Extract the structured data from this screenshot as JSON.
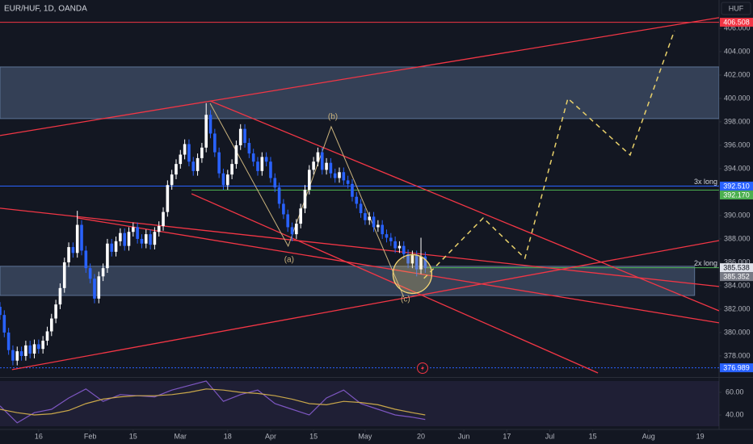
{
  "chart_data": {
    "type": "candlestick",
    "title": "EUR/HUF, 1D, OANDA",
    "currency": "HUF",
    "up_color": "#ffffff",
    "down_color": "#2962ff",
    "xlim": [
      0,
      167.4
    ],
    "ylim": [
      376.34,
      408.41
    ],
    "xticks": [
      {
        "value": 9,
        "label": "16"
      },
      {
        "value": 21,
        "label": "Feb"
      },
      {
        "value": 31,
        "label": "15"
      },
      {
        "value": 42,
        "label": "Mar"
      },
      {
        "value": 53,
        "label": "18"
      },
      {
        "value": 63,
        "label": "Apr"
      },
      {
        "value": 73,
        "label": "15"
      },
      {
        "value": 85,
        "label": "May"
      },
      {
        "value": 98,
        "label": "20"
      },
      {
        "value": 108,
        "label": "Jun"
      },
      {
        "value": 118,
        "label": "17"
      },
      {
        "value": 128,
        "label": "Jul"
      },
      {
        "value": 138,
        "label": "15"
      },
      {
        "value": 151,
        "label": "Aug"
      },
      {
        "value": 163,
        "label": "19"
      }
    ],
    "yticks": [
      {
        "value": 378,
        "label": "378.000"
      },
      {
        "value": 380,
        "label": "380.000"
      },
      {
        "value": 382,
        "label": "382.000"
      },
      {
        "value": 384,
        "label": "384.000"
      },
      {
        "value": 386,
        "label": "386.000"
      },
      {
        "value": 388,
        "label": "388.000"
      },
      {
        "value": 390,
        "label": "390.000"
      },
      {
        "value": 392,
        "label": "392.000"
      },
      {
        "value": 394,
        "label": "394.000"
      },
      {
        "value": 396,
        "label": "396.000"
      },
      {
        "value": 398,
        "label": "398.000"
      },
      {
        "value": 400,
        "label": "400.000"
      },
      {
        "value": 402,
        "label": "402.000"
      },
      {
        "value": 404,
        "label": "404.000"
      },
      {
        "value": 406,
        "label": "406.000"
      }
    ],
    "x": [
      0,
      1,
      2,
      3,
      4,
      5,
      6,
      7,
      8,
      9,
      10,
      11,
      12,
      13,
      14,
      15,
      16,
      17,
      18,
      19,
      20,
      21,
      22,
      23,
      24,
      25,
      26,
      27,
      28,
      29,
      30,
      31,
      32,
      33,
      34,
      35,
      36,
      37,
      38,
      39,
      40,
      41,
      42,
      43,
      44,
      45,
      46,
      47,
      48,
      49,
      50,
      51,
      52,
      53,
      54,
      55,
      56,
      57,
      58,
      59,
      60,
      61,
      62,
      63,
      64,
      65,
      66,
      67,
      68,
      69,
      70,
      71,
      72,
      73,
      74,
      75,
      76,
      77,
      78,
      79,
      80,
      81,
      82,
      83,
      84,
      85,
      86,
      87,
      88,
      89,
      90,
      91,
      92,
      93,
      94,
      95,
      96,
      97,
      98,
      99
    ],
    "ohlc": [
      [
        382.2,
        382.6,
        381.1,
        381.5
      ],
      [
        381.5,
        381.9,
        379.6,
        380.0
      ],
      [
        380.0,
        380.4,
        378.1,
        378.5
      ],
      [
        378.5,
        378.9,
        377.2,
        377.6
      ],
      [
        377.6,
        378.8,
        377.2,
        378.4
      ],
      [
        378.4,
        378.8,
        377.6,
        378.0
      ],
      [
        378.0,
        379.3,
        377.6,
        378.9
      ],
      [
        378.9,
        379.3,
        377.8,
        378.2
      ],
      [
        378.2,
        379.4,
        377.8,
        379.0
      ],
      [
        379.0,
        379.4,
        378.2,
        378.6
      ],
      [
        378.6,
        379.7,
        378.2,
        379.3
      ],
      [
        379.3,
        380.5,
        378.9,
        380.1
      ],
      [
        380.1,
        381.6,
        379.7,
        381.2
      ],
      [
        381.2,
        382.8,
        380.8,
        382.4
      ],
      [
        382.4,
        384.2,
        382.0,
        383.8
      ],
      [
        383.8,
        386.4,
        383.4,
        386.0
      ],
      [
        386.0,
        387.7,
        385.6,
        387.3
      ],
      [
        387.3,
        387.7,
        386.4,
        386.8
      ],
      [
        386.8,
        390.4,
        386.4,
        389.2
      ],
      [
        389.2,
        389.6,
        386.6,
        387.0
      ],
      [
        387.0,
        387.4,
        385.1,
        385.5
      ],
      [
        385.5,
        385.9,
        384.2,
        384.6
      ],
      [
        384.6,
        385.0,
        382.5,
        382.9
      ],
      [
        382.9,
        385.2,
        382.5,
        384.8
      ],
      [
        384.8,
        385.9,
        384.4,
        385.5
      ],
      [
        385.5,
        388.0,
        385.1,
        387.6
      ],
      [
        387.6,
        388.0,
        386.5,
        386.9
      ],
      [
        386.9,
        388.2,
        386.5,
        387.8
      ],
      [
        387.8,
        388.9,
        387.4,
        388.5
      ],
      [
        388.5,
        388.9,
        387.0,
        387.4
      ],
      [
        387.4,
        389.0,
        387.0,
        388.6
      ],
      [
        388.6,
        389.4,
        388.2,
        389.0
      ],
      [
        389.0,
        389.4,
        387.6,
        388.0
      ],
      [
        388.0,
        388.4,
        387.2,
        387.6
      ],
      [
        387.6,
        388.8,
        387.2,
        388.4
      ],
      [
        388.4,
        388.8,
        387.1,
        387.5
      ],
      [
        387.5,
        389.0,
        387.1,
        388.6
      ],
      [
        388.6,
        389.5,
        388.2,
        389.1
      ],
      [
        389.1,
        390.7,
        388.7,
        390.3
      ],
      [
        390.3,
        393.0,
        389.9,
        392.6
      ],
      [
        392.6,
        393.9,
        392.2,
        393.5
      ],
      [
        393.5,
        394.8,
        393.1,
        394.4
      ],
      [
        394.4,
        395.6,
        394.0,
        395.2
      ],
      [
        395.2,
        396.5,
        394.8,
        396.1
      ],
      [
        396.1,
        396.5,
        394.2,
        394.6
      ],
      [
        394.6,
        395.0,
        393.4,
        393.8
      ],
      [
        393.8,
        395.3,
        393.4,
        394.9
      ],
      [
        394.9,
        396.2,
        394.5,
        395.8
      ],
      [
        395.8,
        399.6,
        395.4,
        398.6
      ],
      [
        398.6,
        399.0,
        396.6,
        397.0
      ],
      [
        397.0,
        397.4,
        395.0,
        395.4
      ],
      [
        395.4,
        395.8,
        393.2,
        393.6
      ],
      [
        393.6,
        394.0,
        392.2,
        392.6
      ],
      [
        392.6,
        393.9,
        392.2,
        393.5
      ],
      [
        393.5,
        394.8,
        393.1,
        394.4
      ],
      [
        394.4,
        396.4,
        394.0,
        396.0
      ],
      [
        396.0,
        397.8,
        395.6,
        397.4
      ],
      [
        397.4,
        397.8,
        395.8,
        396.2
      ],
      [
        396.2,
        396.6,
        394.9,
        395.3
      ],
      [
        395.3,
        395.7,
        394.2,
        394.6
      ],
      [
        394.6,
        395.0,
        393.4,
        393.8
      ],
      [
        393.8,
        395.4,
        393.4,
        395.0
      ],
      [
        395.0,
        395.4,
        394.2,
        394.6
      ],
      [
        394.6,
        395.0,
        392.8,
        393.2
      ],
      [
        393.2,
        393.6,
        392.0,
        392.4
      ],
      [
        392.4,
        392.8,
        390.6,
        391.0
      ],
      [
        391.0,
        391.4,
        389.7,
        390.1
      ],
      [
        390.1,
        390.5,
        388.6,
        389.0
      ],
      [
        389.0,
        389.4,
        387.8,
        388.4
      ],
      [
        388.4,
        389.7,
        388.0,
        389.3
      ],
      [
        389.3,
        391.0,
        388.9,
        390.6
      ],
      [
        390.6,
        392.6,
        390.2,
        392.2
      ],
      [
        392.2,
        394.3,
        391.8,
        393.9
      ],
      [
        393.9,
        395.0,
        393.5,
        394.6
      ],
      [
        394.6,
        395.8,
        394.2,
        395.4
      ],
      [
        395.4,
        395.8,
        393.5,
        393.9
      ],
      [
        393.9,
        394.9,
        393.5,
        394.5
      ],
      [
        394.5,
        394.9,
        393.2,
        393.6
      ],
      [
        393.6,
        394.0,
        392.8,
        393.2
      ],
      [
        393.2,
        394.1,
        392.8,
        393.7
      ],
      [
        393.7,
        394.1,
        392.6,
        393.0
      ],
      [
        393.0,
        393.4,
        392.3,
        392.7
      ],
      [
        392.7,
        393.1,
        391.2,
        391.6
      ],
      [
        391.6,
        392.0,
        390.6,
        391.0
      ],
      [
        391.0,
        391.4,
        389.8,
        390.2
      ],
      [
        390.2,
        390.6,
        389.2,
        389.6
      ],
      [
        389.6,
        390.3,
        389.2,
        389.9
      ],
      [
        389.9,
        390.3,
        388.6,
        389.0
      ],
      [
        389.0,
        389.6,
        388.6,
        389.2
      ],
      [
        389.2,
        389.6,
        388.0,
        388.4
      ],
      [
        388.4,
        388.8,
        387.7,
        388.1
      ],
      [
        388.1,
        388.5,
        387.4,
        387.8
      ],
      [
        387.8,
        388.2,
        386.8,
        387.2
      ],
      [
        387.2,
        387.8,
        386.8,
        387.4
      ],
      [
        387.4,
        387.8,
        386.3,
        386.7
      ],
      [
        386.7,
        387.1,
        385.5,
        385.9
      ],
      [
        385.9,
        387.0,
        385.5,
        386.6
      ],
      [
        386.6,
        387.0,
        384.8,
        385.4
      ],
      [
        385.4,
        388.1,
        385.0,
        386.5
      ],
      [
        386.5,
        386.9,
        385.1,
        385.5
      ]
    ],
    "zones": [
      {
        "x": [
          0,
          167.4
        ],
        "y": [
          398.28,
          402.69
        ]
      },
      {
        "x": [
          0,
          161.7
        ],
        "y": [
          383.17,
          385.66
        ]
      }
    ],
    "zone_color": "#5d7396",
    "levels": [
      {
        "value": 406.508,
        "label": "406.508",
        "color": "#f23645",
        "x_start": 0,
        "style": "solid"
      },
      {
        "value": 392.51,
        "label": "392.510",
        "color": "#2962ff",
        "x_start": 0,
        "style": "solid",
        "note": "3x long"
      },
      {
        "value": 392.17,
        "label": "392.170",
        "color": "#4caf50",
        "x_start": 44.6,
        "style": "solid"
      },
      {
        "value": 385.538,
        "label": "385.538",
        "color": "#e0e3eb",
        "x_start": 99,
        "style": "solid",
        "line_color": "#4caf50",
        "note": "2x long"
      },
      {
        "value": 385.352,
        "label": "385.352",
        "color": "#787b86",
        "x_start": 99,
        "style": "none"
      },
      {
        "value": 376.989,
        "label": "376.989",
        "color": "#2962ff",
        "x_start": 0,
        "style": "dashed"
      }
    ],
    "trendline_color": "#f23645",
    "trendlines": [
      {
        "x": [
          0,
          167.4
        ],
        "y": [
          396.83,
          406.9
        ]
      },
      {
        "x": [
          0,
          167.4
        ],
        "y": [
          390.62,
          383.93
        ]
      },
      {
        "x": [
          17.9,
          167.4
        ],
        "y": [
          389.8,
          380.83
        ]
      },
      {
        "x": [
          44.6,
          139.2
        ],
        "y": [
          391.86,
          376.55
        ]
      },
      {
        "x": [
          48.9,
          167.4
        ],
        "y": [
          399.79,
          381.86
        ]
      },
      {
        "x": [
          2.8,
          167.4
        ],
        "y": [
          376.83,
          387.86
        ]
      }
    ],
    "wave": {
      "x": [
        48.9,
        67.1,
        77.1,
        94.0
      ],
      "y": [
        399.59,
        387.38,
        397.59,
        383.03
      ],
      "color": "#c9b27c"
    },
    "wave_labels": [
      {
        "text": "(a)",
        "x": 67.3,
        "y": 386.21
      },
      {
        "text": "(b)",
        "x": 77.5,
        "y": 398.41
      },
      {
        "text": "(c)",
        "x": 94.4,
        "y": 382.83
      }
    ],
    "highlight": {
      "x": 96,
      "y": 385.0,
      "color": "#f7d774"
    },
    "projection": {
      "x": [
        98.7,
        112.5,
        122.2,
        132.2,
        146.7,
        157.0
      ],
      "y": [
        384.62,
        389.79,
        386.34,
        400.0,
        395.17,
        405.79
      ],
      "color": "#e8d06a"
    },
    "rsi": {
      "x": [
        0,
        4,
        8,
        12,
        16,
        20,
        24,
        28,
        32,
        36,
        40,
        44,
        48,
        52,
        56,
        60,
        64,
        68,
        72,
        76,
        80,
        84,
        88,
        92,
        96,
        99
      ],
      "values": [
        48,
        33,
        42,
        45,
        55,
        63,
        52,
        58,
        57,
        56,
        62,
        66,
        70,
        52,
        58,
        62,
        50,
        45,
        40,
        55,
        62,
        50,
        45,
        40,
        38,
        36
      ],
      "ma": [
        45,
        42,
        40,
        41,
        44,
        50,
        54,
        56,
        57,
        57,
        58,
        60,
        63,
        62,
        60,
        59,
        57,
        54,
        50,
        49,
        52,
        51,
        49,
        45,
        42,
        40
      ],
      "color": "#7e57c2",
      "ma_color": "#c9a74a",
      "ylim": [
        28.6,
        71.4
      ],
      "band": [
        30,
        70
      ],
      "yticks": [
        {
          "value": 60,
          "label": "60.00"
        },
        {
          "value": 40,
          "label": "40.00"
        }
      ]
    }
  }
}
